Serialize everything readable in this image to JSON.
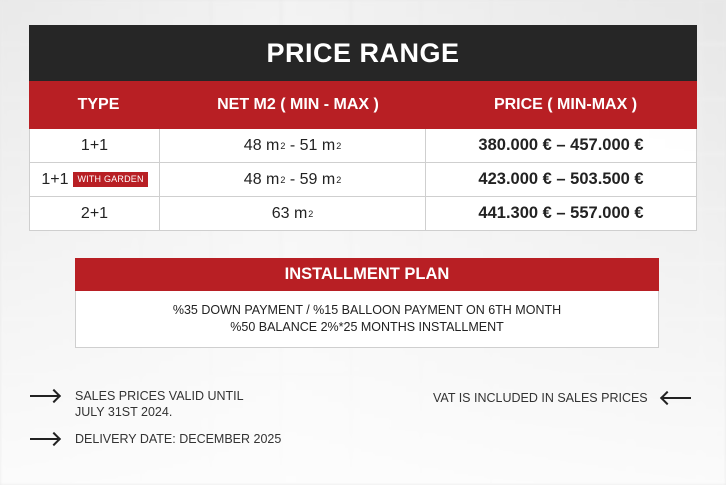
{
  "title": "PRICE RANGE",
  "headers": {
    "type": "TYPE",
    "net": "NET M2 ( MIN - MAX )",
    "price": "PRICE ( MIN-MAX )"
  },
  "rows": [
    {
      "type": "1+1",
      "badge": "",
      "net_min": "48 m",
      "net_sep": " - ",
      "net_max": "51 m",
      "price": "380.000 € – 457.000 €"
    },
    {
      "type": "1+1",
      "badge": "WITH GARDEN",
      "net_min": "48 m",
      "net_sep": " - ",
      "net_max": "59 m",
      "price": "423.000 € – 503.500 €"
    },
    {
      "type": "2+1",
      "badge": "",
      "net_single": "63 m",
      "price": "441.300 € – 557.000 €"
    }
  ],
  "unit_sup": "2",
  "installment": {
    "title": "INSTALLMENT PLAN",
    "line1": "%35 DOWN PAYMENT / %15 BALLOON PAYMENT ON 6TH MONTH",
    "line2": "%50 BALANCE 2%*25 MONTHS INSTALLMENT"
  },
  "notes": {
    "sales_valid_line1": "SALES PRICES VALID UNTIL",
    "sales_valid_line2": "JULY 31ST 2024.",
    "delivery": "DELIVERY DATE: DECEMBER 2025",
    "vat": "VAT IS INCLUDED IN SALES PRICES"
  },
  "icons": {
    "note_arrow": "arrow-right-icon",
    "vat_arrow": "arrow-left-icon"
  },
  "colors": {
    "accent_red": "#b81f24",
    "title_dark": "#262626"
  }
}
